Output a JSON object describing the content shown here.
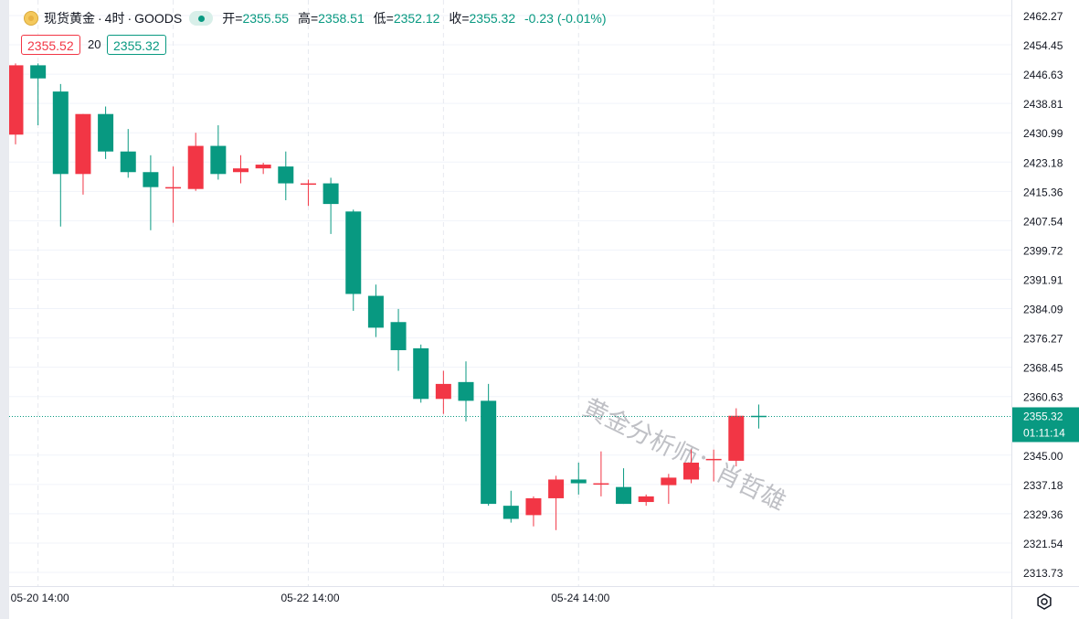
{
  "header": {
    "symbol": "现货黄金",
    "interval": "4时",
    "source": "GOODS",
    "title_sep": "·",
    "open_label": "开=",
    "open": "2355.55",
    "high_label": "高=",
    "high": "2358.51",
    "low_label": "低=",
    "low": "2352.12",
    "close_label": "收=",
    "close": "2355.32",
    "change": "-0.23 (-0.01%)"
  },
  "quote": {
    "bid": "2355.52",
    "spread": "20",
    "ask": "2355.32"
  },
  "watermark": "黄金分析师：肖哲雄",
  "colors": {
    "up": "#089981",
    "down": "#f23645",
    "grid": "#f0f3fa",
    "text": "#131722"
  },
  "icons": [
    "coin-icon",
    "status-dot-icon",
    "gear-icon"
  ],
  "chart_data": {
    "type": "candlestick",
    "y_ticks": [
      "2462.27",
      "2454.45",
      "2446.63",
      "2438.81",
      "2430.99",
      "2423.18",
      "2415.36",
      "2407.54",
      "2399.72",
      "2391.91",
      "2384.09",
      "2376.27",
      "2368.45",
      "2360.63",
      "2345.00",
      "2337.18",
      "2329.36",
      "2321.54",
      "2313.73"
    ],
    "x_labels": [
      "05-20 14:00",
      "05-22 14:00",
      "05-24 14:00"
    ],
    "x_label_candle_index": [
      1,
      13,
      25
    ],
    "last_price": "2355.32",
    "countdown": "01:11:14",
    "candles": [
      {
        "o": 2430.5,
        "h": 2449.5,
        "l": 2427.9,
        "c": 2449.0
      },
      {
        "o": 2449.0,
        "h": 2449.5,
        "l": 2433.0,
        "c": 2445.5
      },
      {
        "o": 2442.0,
        "h": 2444.0,
        "l": 2406.0,
        "c": 2420.0
      },
      {
        "o": 2420.0,
        "h": 2436.0,
        "l": 2414.5,
        "c": 2436.0
      },
      {
        "o": 2436.0,
        "h": 2438.0,
        "l": 2424.0,
        "c": 2426.0
      },
      {
        "o": 2426.0,
        "h": 2432.0,
        "l": 2419.0,
        "c": 2420.5
      },
      {
        "o": 2420.5,
        "h": 2425.0,
        "l": 2405.0,
        "c": 2416.5
      },
      {
        "o": 2416.5,
        "h": 2422.0,
        "l": 2407.0,
        "c": 2416.5
      },
      {
        "o": 2416.0,
        "h": 2431.0,
        "l": 2415.5,
        "c": 2427.5
      },
      {
        "o": 2427.5,
        "h": 2433.0,
        "l": 2418.5,
        "c": 2420.0
      },
      {
        "o": 2420.5,
        "h": 2425.0,
        "l": 2417.5,
        "c": 2421.5
      },
      {
        "o": 2421.5,
        "h": 2423.0,
        "l": 2420.0,
        "c": 2422.5
      },
      {
        "o": 2422.0,
        "h": 2426.0,
        "l": 2413.0,
        "c": 2417.5
      },
      {
        "o": 2417.5,
        "h": 2418.5,
        "l": 2411.5,
        "c": 2417.5
      },
      {
        "o": 2417.5,
        "h": 2419.0,
        "l": 2404.0,
        "c": 2412.0
      },
      {
        "o": 2410.0,
        "h": 2410.5,
        "l": 2383.5,
        "c": 2388.0
      },
      {
        "o": 2387.5,
        "h": 2390.5,
        "l": 2376.5,
        "c": 2379.0
      },
      {
        "o": 2380.5,
        "h": 2384.0,
        "l": 2367.5,
        "c": 2373.0
      },
      {
        "o": 2373.5,
        "h": 2374.5,
        "l": 2359.0,
        "c": 2360.0
      },
      {
        "o": 2360.0,
        "h": 2367.5,
        "l": 2356.0,
        "c": 2364.0
      },
      {
        "o": 2364.5,
        "h": 2370.0,
        "l": 2354.0,
        "c": 2359.5
      },
      {
        "o": 2359.5,
        "h": 2364.0,
        "l": 2331.5,
        "c": 2332.0
      },
      {
        "o": 2331.5,
        "h": 2335.5,
        "l": 2327.0,
        "c": 2328.0
      },
      {
        "o": 2329.0,
        "h": 2334.0,
        "l": 2326.0,
        "c": 2333.5
      },
      {
        "o": 2333.5,
        "h": 2339.5,
        "l": 2325.0,
        "c": 2338.5
      },
      {
        "o": 2338.5,
        "h": 2343.0,
        "l": 2334.5,
        "c": 2337.5
      },
      {
        "o": 2337.5,
        "h": 2346.0,
        "l": 2334.0,
        "c": 2337.5
      },
      {
        "o": 2336.5,
        "h": 2341.5,
        "l": 2332.0,
        "c": 2332.0
      },
      {
        "o": 2332.5,
        "h": 2334.5,
        "l": 2331.5,
        "c": 2334.0
      },
      {
        "o": 2337.0,
        "h": 2340.0,
        "l": 2332.0,
        "c": 2339.0
      },
      {
        "o": 2338.5,
        "h": 2346.5,
        "l": 2337.5,
        "c": 2343.0
      },
      {
        "o": 2344.0,
        "h": 2346.5,
        "l": 2338.0,
        "c": 2344.0
      },
      {
        "o": 2343.5,
        "h": 2357.5,
        "l": 2342.0,
        "c": 2355.5
      },
      {
        "o": 2355.5,
        "h": 2358.5,
        "l": 2352.1,
        "c": 2355.3
      }
    ]
  }
}
